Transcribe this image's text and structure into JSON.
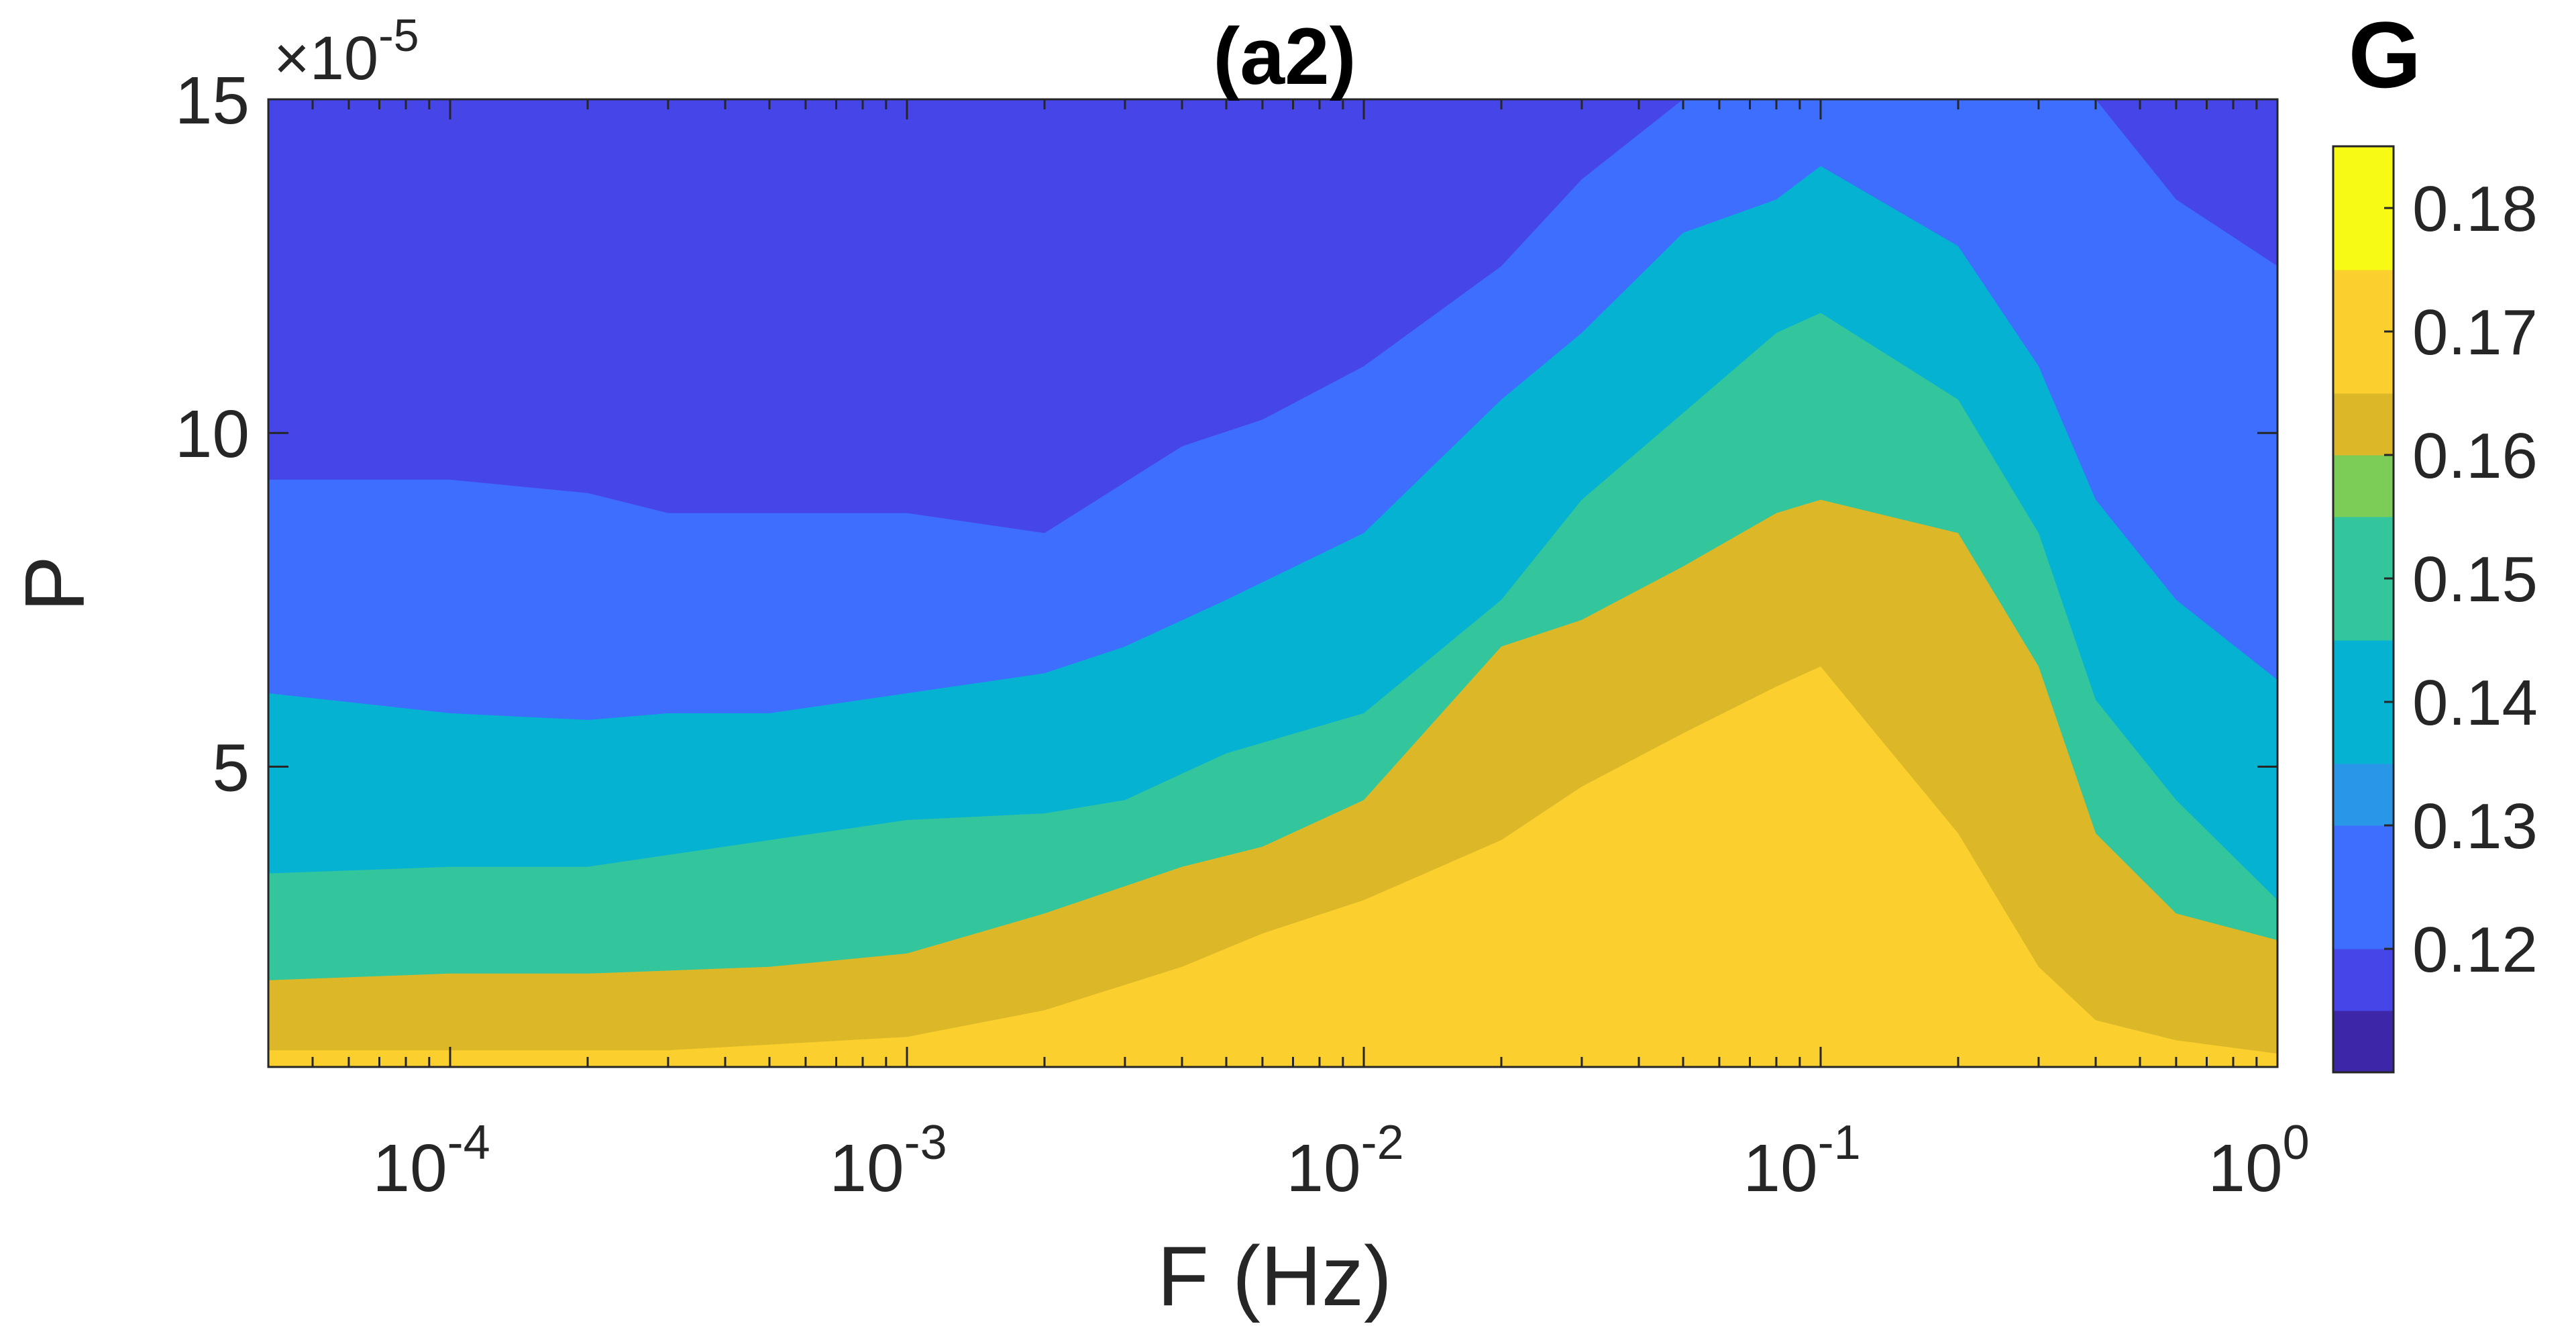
{
  "chart_data": {
    "type": "contourf",
    "title": "(a2)",
    "xlabel": "F (Hz)",
    "ylabel": "P",
    "x_scale": "log",
    "xlim": [
      4e-05,
      1
    ],
    "ylim": [
      5e-06,
      0.00015
    ],
    "y_exponent_label": "×10",
    "y_exponent_power": "-5",
    "x_ticks": [
      {
        "value": 0.0001,
        "base": "10",
        "exp": "-4"
      },
      {
        "value": 0.001,
        "base": "10",
        "exp": "-3"
      },
      {
        "value": 0.01,
        "base": "10",
        "exp": "-2"
      },
      {
        "value": 0.1,
        "base": "10",
        "exp": "-1"
      },
      {
        "value": 1,
        "base": "10",
        "exp": "0"
      }
    ],
    "y_ticks": [
      {
        "value": 5e-05,
        "label": "5"
      },
      {
        "value": 0.0001,
        "label": "10"
      },
      {
        "value": 0.00015,
        "label": "15"
      }
    ],
    "colorbar": {
      "title": "G",
      "range": [
        0.11,
        0.185
      ],
      "ticks": [
        0.12,
        0.13,
        0.14,
        0.15,
        0.16,
        0.17,
        0.18
      ],
      "tick_labels": [
        "0.12",
        "0.13",
        "0.14",
        "0.15",
        "0.16",
        "0.17",
        "0.18"
      ],
      "bands": [
        {
          "from": 0.11,
          "to": 0.115,
          "color": "#3d26a8"
        },
        {
          "from": 0.115,
          "to": 0.12,
          "color": "#4646e8"
        },
        {
          "from": 0.12,
          "to": 0.13,
          "color": "#3d6efe"
        },
        {
          "from": 0.13,
          "to": 0.135,
          "color": "#2a96e8"
        },
        {
          "from": 0.135,
          "to": 0.145,
          "color": "#05b2d2"
        },
        {
          "from": 0.145,
          "to": 0.155,
          "color": "#33c59c"
        },
        {
          "from": 0.155,
          "to": 0.16,
          "color": "#7ccc58"
        },
        {
          "from": 0.16,
          "to": 0.165,
          "color": "#dcb828"
        },
        {
          "from": 0.165,
          "to": 0.175,
          "color": "#fbcf2e"
        },
        {
          "from": 0.175,
          "to": 0.185,
          "color": "#f6fa14"
        }
      ]
    },
    "levels": [
      {
        "value": 0.12,
        "color": "#4646e8",
        "x": [
          4e-05,
          0.0001,
          0.001,
          0.01,
          0.02,
          0.05,
          0.1,
          0.3,
          0.6,
          1
        ],
        "y": [
          0.00015,
          0.00015,
          0.00015,
          0.00015,
          0.00015,
          0.00015,
          0.00015,
          0.00015,
          0.00015,
          0.00015
        ]
      },
      {
        "value": 0.13,
        "color": "#3d6efe",
        "x": [
          4e-05,
          0.0001,
          0.0002,
          0.0003,
          0.0005,
          0.001,
          0.002,
          0.004,
          0.006,
          0.01,
          0.02,
          0.03,
          0.05,
          0.1,
          0.2,
          0.3,
          0.4,
          0.6,
          1
        ],
        "y": [
          9.3e-05,
          9.3e-05,
          9.1e-05,
          8.8e-05,
          8.8e-05,
          8.8e-05,
          8.5e-05,
          9.8e-05,
          0.000102,
          0.00011,
          0.000125,
          0.000138,
          0.00015,
          0.00015,
          0.00015,
          0.00015,
          0.00015,
          0.000135,
          0.000125
        ]
      },
      {
        "value": 0.14,
        "color": "#05b2d2",
        "x": [
          4e-05,
          0.0001,
          0.0002,
          0.0003,
          0.0005,
          0.001,
          0.002,
          0.003,
          0.005,
          0.01,
          0.02,
          0.03,
          0.05,
          0.08,
          0.1,
          0.2,
          0.3,
          0.4,
          0.6,
          1
        ],
        "y": [
          6.1e-05,
          5.8e-05,
          5.7e-05,
          5.8e-05,
          5.8e-05,
          6.1e-05,
          6.4e-05,
          6.8e-05,
          7.5e-05,
          8.5e-05,
          0.000105,
          0.000115,
          0.00013,
          0.000135,
          0.00014,
          0.000128,
          0.00011,
          9e-05,
          7.5e-05,
          6.3e-05
        ]
      },
      {
        "value": 0.15,
        "color": "#33c59c",
        "x": [
          4e-05,
          0.0001,
          0.0002,
          0.0005,
          0.001,
          0.002,
          0.003,
          0.005,
          0.01,
          0.02,
          0.03,
          0.05,
          0.08,
          0.1,
          0.2,
          0.3,
          0.4,
          0.6,
          1
        ],
        "y": [
          3.4e-05,
          3.5e-05,
          3.5e-05,
          3.9e-05,
          4.2e-05,
          4.3e-05,
          4.5e-05,
          5.2e-05,
          5.8e-05,
          7.5e-05,
          9e-05,
          0.000103,
          0.000115,
          0.000118,
          0.000105,
          8.5e-05,
          6e-05,
          4.5e-05,
          3e-05
        ]
      },
      {
        "value": 0.16,
        "color": "#dcb828",
        "x": [
          4e-05,
          0.0001,
          0.0002,
          0.0005,
          0.001,
          0.002,
          0.004,
          0.006,
          0.01,
          0.02,
          0.03,
          0.05,
          0.08,
          0.1,
          0.2,
          0.3,
          0.4,
          0.6,
          1
        ],
        "y": [
          1.8e-05,
          1.9e-05,
          1.9e-05,
          2e-05,
          2.2e-05,
          2.8e-05,
          3.5e-05,
          3.8e-05,
          4.5e-05,
          6.8e-05,
          7.2e-05,
          8e-05,
          8.8e-05,
          9e-05,
          8.5e-05,
          6.5e-05,
          4e-05,
          2.8e-05,
          2.4e-05
        ]
      },
      {
        "value": 0.17,
        "color": "#fbcf2e",
        "x": [
          4e-05,
          0.0001,
          0.0003,
          0.001,
          0.002,
          0.004,
          0.006,
          0.01,
          0.02,
          0.03,
          0.05,
          0.08,
          0.1,
          0.2,
          0.3,
          0.4,
          0.6,
          1
        ],
        "y": [
          7.5e-06,
          7.5e-06,
          7.5e-06,
          9.5e-06,
          1.35e-05,
          2e-05,
          2.5e-05,
          3e-05,
          3.9e-05,
          4.7e-05,
          5.5e-05,
          6.2e-05,
          6.5e-05,
          4e-05,
          2e-05,
          1.2e-05,
          9e-06,
          7e-06
        ]
      }
    ]
  }
}
